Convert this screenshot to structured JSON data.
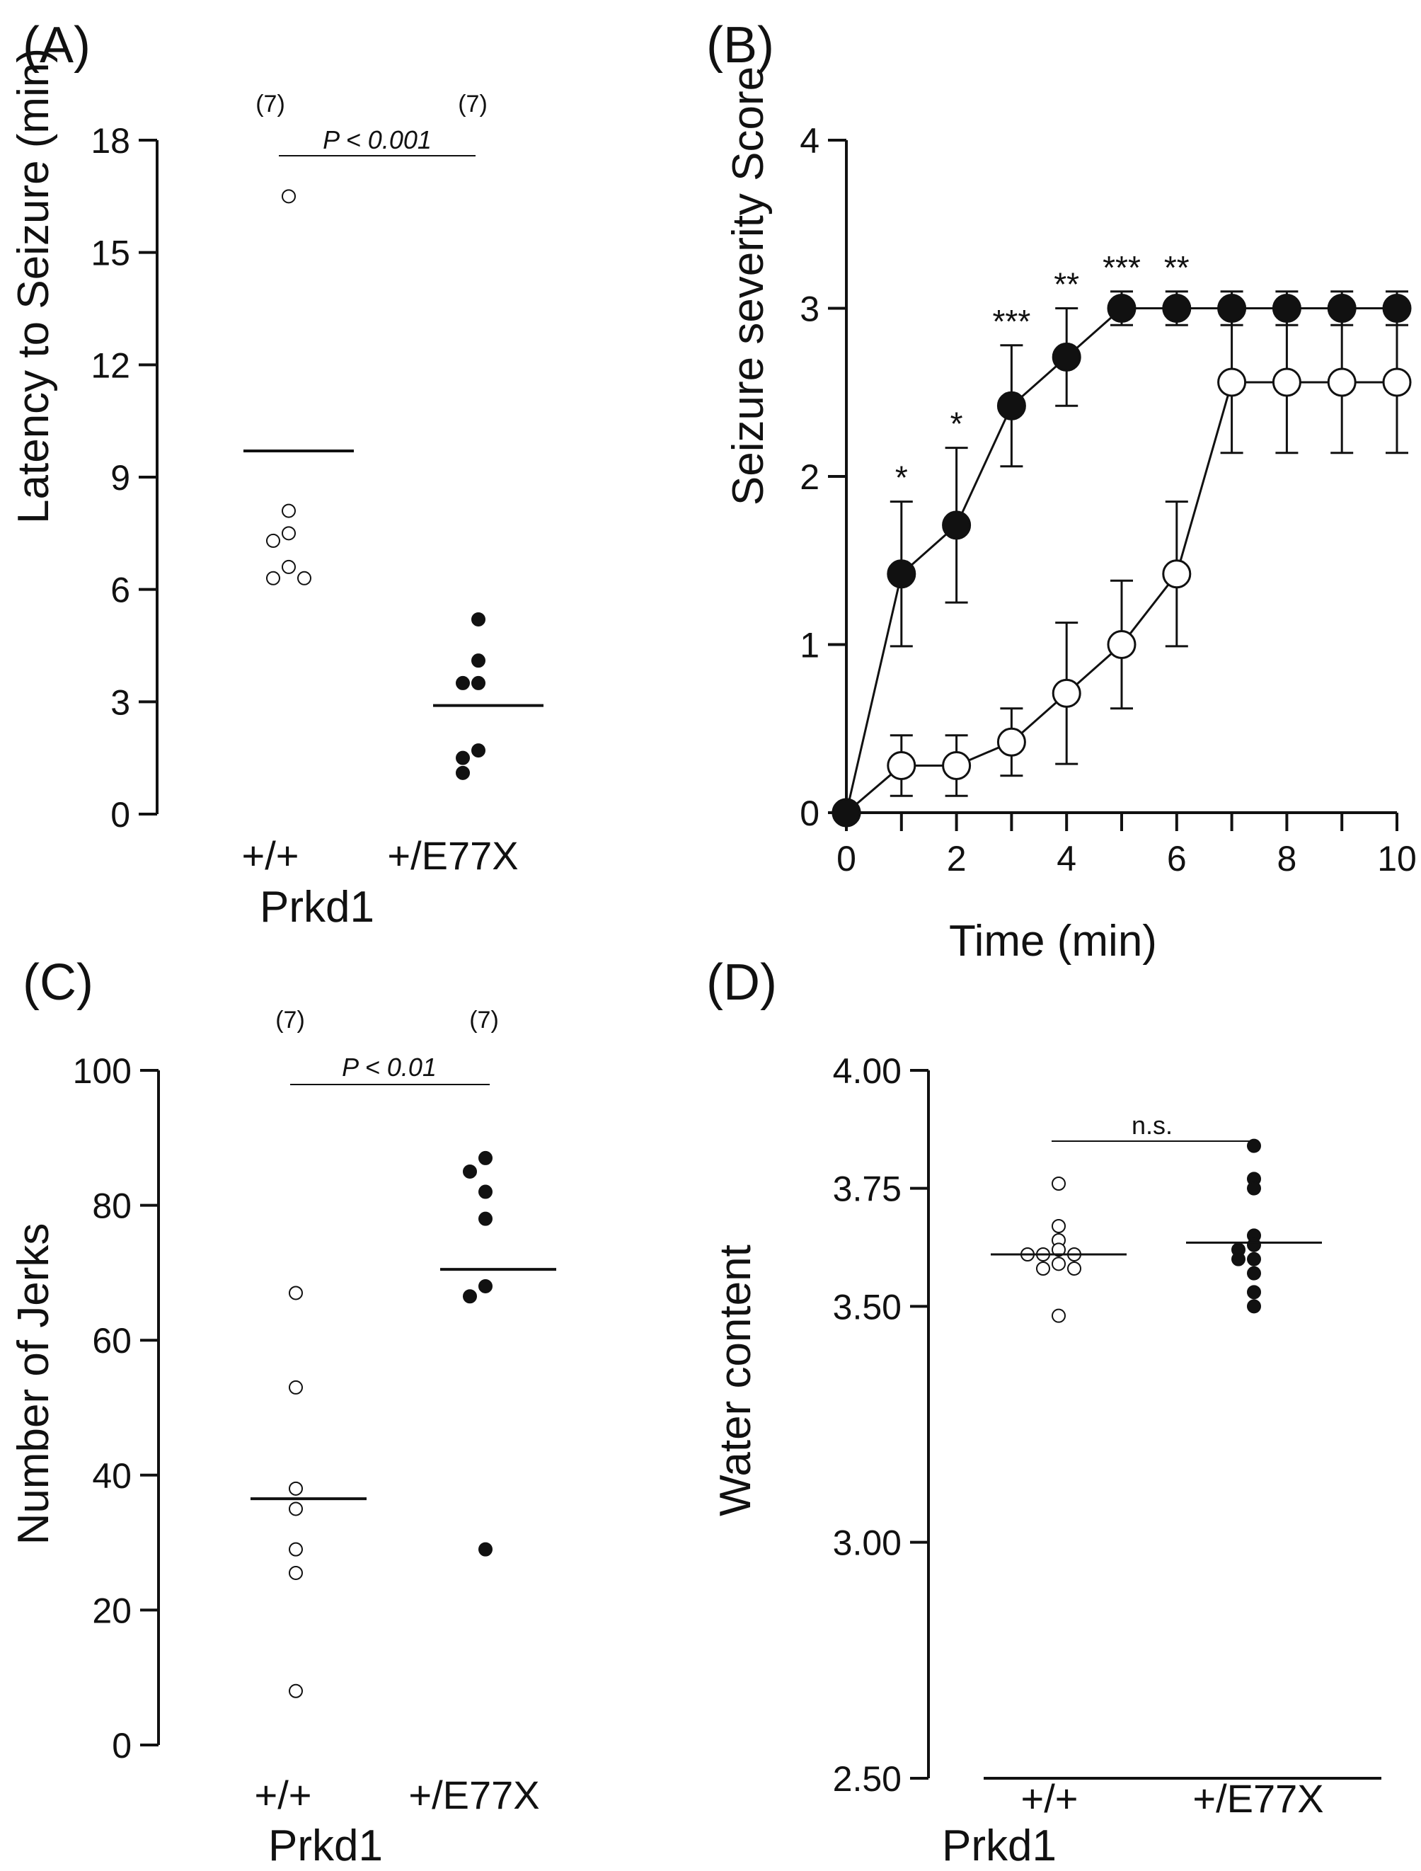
{
  "chart_data": [
    {
      "type": "scatter",
      "panel": "(A)",
      "ylabel": "Latency to Seizure (min)",
      "xlabel": "Prkd1",
      "ylim": [
        0,
        18
      ],
      "yticks": [
        0,
        3,
        6,
        9,
        12,
        15,
        18
      ],
      "categories": [
        "+/+",
        "+/E77X"
      ],
      "series": [
        {
          "category": "+/+",
          "fill": "open",
          "n_label": "(7)",
          "mean": 9.7,
          "values": [
            16.5,
            8.1,
            7.5,
            7.3,
            6.6,
            6.3,
            6.3
          ]
        },
        {
          "category": "+/E77X",
          "fill": "filled",
          "n_label": "(7)",
          "mean": 2.9,
          "values": [
            5.2,
            4.1,
            3.5,
            3.5,
            1.7,
            1.5,
            1.1
          ]
        }
      ],
      "significance": "P < 0.001",
      "colors": {
        "open": "#ffffff",
        "filled": "#111111"
      }
    },
    {
      "type": "line",
      "panel": "(B)",
      "ylabel": "Seizure severity Score",
      "xlabel": "Time (min)",
      "xlim": [
        0,
        10
      ],
      "ylim": [
        0,
        4
      ],
      "xticks": [
        0,
        2,
        4,
        6,
        8,
        10
      ],
      "yticks": [
        0,
        1,
        2,
        3,
        4
      ],
      "x": [
        0,
        1,
        2,
        3,
        4,
        5,
        6,
        7,
        8,
        9,
        10
      ],
      "series": [
        {
          "fill": "filled",
          "values": [
            0,
            1.42,
            1.71,
            2.42,
            2.71,
            3.0,
            3.0,
            3.0,
            3.0,
            3.0,
            3.0
          ],
          "errors": [
            0,
            0.43,
            0.46,
            0.36,
            0.29,
            0.1,
            0.1,
            0.1,
            0.1,
            0.1,
            0.1
          ]
        },
        {
          "fill": "open",
          "values": [
            0,
            0.28,
            0.28,
            0.42,
            0.71,
            1.0,
            1.42,
            2.56,
            2.56,
            2.56,
            2.56
          ],
          "errors": [
            0,
            0.18,
            0.18,
            0.2,
            0.42,
            0.38,
            0.43,
            0.42,
            0.42,
            0.42,
            0.42
          ]
        }
      ],
      "annotations": [
        {
          "x": 1,
          "text": "*"
        },
        {
          "x": 2,
          "text": "*"
        },
        {
          "x": 3,
          "text": "***"
        },
        {
          "x": 4,
          "text": "**"
        },
        {
          "x": 5,
          "text": "***"
        },
        {
          "x": 6,
          "text": "**"
        }
      ],
      "colors": {
        "open": "#ffffff",
        "filled": "#111111"
      }
    },
    {
      "type": "scatter",
      "panel": "(C)",
      "ylabel": "Number of Jerks",
      "xlabel": "Prkd1",
      "ylim": [
        0,
        100
      ],
      "yticks": [
        0,
        20,
        40,
        60,
        80,
        100
      ],
      "categories": [
        "+/+",
        "+/E77X"
      ],
      "series": [
        {
          "category": "+/+",
          "fill": "open",
          "n_label": "(7)",
          "mean": 36.5,
          "values": [
            67,
            53,
            38,
            35,
            29,
            25.5,
            8
          ]
        },
        {
          "category": "+/E77X",
          "fill": "filled",
          "n_label": "(7)",
          "mean": 70.5,
          "values": [
            87,
            85,
            82,
            78,
            68,
            66.5,
            29
          ]
        }
      ],
      "significance": "P < 0.01",
      "colors": {
        "open": "#ffffff",
        "filled": "#111111"
      }
    },
    {
      "type": "scatter",
      "panel": "(D)",
      "ylabel": "Water content",
      "xlabel": "Prkd1",
      "ylim": [
        2.5,
        4.0
      ],
      "yticks": [
        "2.50",
        "3.00",
        "3.50",
        "3.75",
        "4.00"
      ],
      "categories": [
        "+/+",
        "+/E77X"
      ],
      "series": [
        {
          "category": "+/+",
          "fill": "open",
          "mean": 3.61,
          "values": [
            3.76,
            3.67,
            3.64,
            3.62,
            3.61,
            3.61,
            3.61,
            3.59,
            3.58,
            3.58,
            3.48
          ]
        },
        {
          "category": "+/E77X",
          "fill": "filled",
          "mean": 3.635,
          "values": [
            3.84,
            3.77,
            3.75,
            3.65,
            3.63,
            3.62,
            3.6,
            3.6,
            3.57,
            3.53,
            3.5
          ]
        }
      ],
      "significance": "n.s.",
      "colors": {
        "open": "#ffffff",
        "filled": "#111111"
      }
    }
  ]
}
